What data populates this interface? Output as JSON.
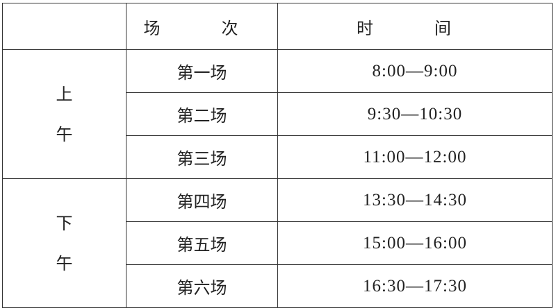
{
  "header": {
    "col1": "",
    "col2": "场　次",
    "col3": "时　间"
  },
  "periods": [
    {
      "label_chars": [
        "上",
        "午"
      ],
      "sessions": [
        {
          "name": "第一场",
          "time": "8:00—9:00"
        },
        {
          "name": "第二场",
          "time": "9:30—10:30"
        },
        {
          "name": "第三场",
          "time": "11:00—12:00"
        }
      ]
    },
    {
      "label_chars": [
        "下",
        "午"
      ],
      "sessions": [
        {
          "name": "第四场",
          "time": "13:30—14:30"
        },
        {
          "name": "第五场",
          "time": "15:00—16:00"
        },
        {
          "name": "第六场",
          "time": "16:30—17:30"
        }
      ]
    }
  ]
}
